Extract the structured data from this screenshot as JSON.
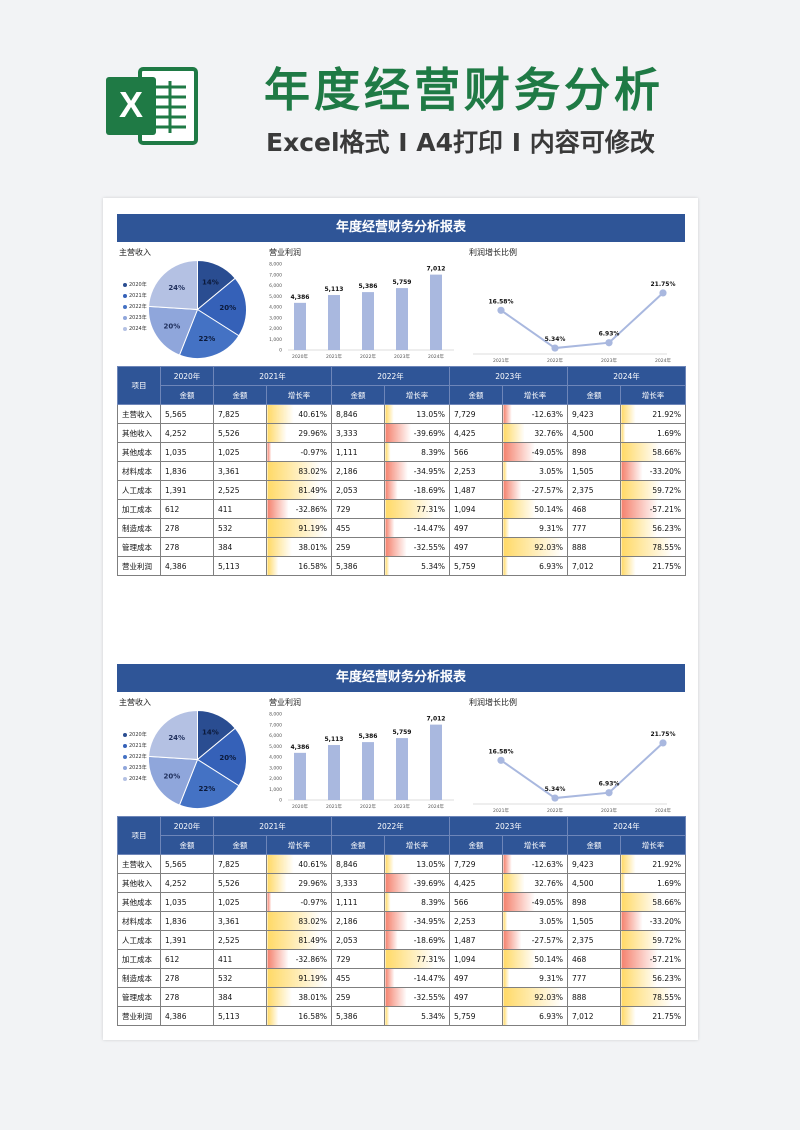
{
  "promo": {
    "logo_letter": "X",
    "title": "年度经营财务分析",
    "subtitle": "Excel格式 I A4打印 I 内容可修改"
  },
  "report": {
    "title": "年度经营财务分析报表",
    "pie_title": "主营收入",
    "bar_title": "营业利润",
    "line_title": "利润增长比例"
  },
  "colors": {
    "header_bg": "#2f5597",
    "brand_green": "#1f7a45",
    "bar": "#a9b8df",
    "line": "#a9b8df",
    "positive_rate": "#ffd966",
    "negative_rate": "#f4826e"
  },
  "chart_data": [
    {
      "type": "pie",
      "title": "主营收入",
      "legend_position": "left",
      "categories": [
        "2020年",
        "2021年",
        "2022年",
        "2023年",
        "2024年"
      ],
      "values": [
        14,
        20,
        22,
        20,
        24
      ],
      "labels": [
        "14%",
        "20%",
        "22%",
        "20%",
        "24%"
      ],
      "colors": [
        "#2a4d91",
        "#3561b8",
        "#4472c4",
        "#8fa6db",
        "#b4c1e3"
      ]
    },
    {
      "type": "bar",
      "title": "营业利润",
      "categories": [
        "2020年",
        "2021年",
        "2022年",
        "2023年",
        "2024年"
      ],
      "values": [
        4386,
        5113,
        5386,
        5759,
        7012
      ],
      "labels": [
        "4,386",
        "5,113",
        "5,386",
        "5,759",
        "7,012"
      ],
      "ylim": [
        0,
        8000
      ],
      "yticks": [
        "0",
        "1,000",
        "2,000",
        "3,000",
        "4,000",
        "5,000",
        "6,000",
        "7,000",
        "8,000"
      ],
      "grid": false
    },
    {
      "type": "line",
      "title": "利润增长比例",
      "categories": [
        "2021年",
        "2022年",
        "2023年",
        "2024年"
      ],
      "values": [
        16.58,
        5.34,
        6.93,
        21.75
      ],
      "labels": [
        "16.58%",
        "5.34%",
        "6.93%",
        "21.75%"
      ],
      "grid": false
    },
    {
      "type": "table",
      "header_col": "项目",
      "years": [
        "2020年",
        "2021年",
        "2022年",
        "2023年",
        "2024年"
      ],
      "sub_amount": "金额",
      "sub_rate": "增长率",
      "rows": [
        {
          "name": "主营收入",
          "cells": [
            "5,565",
            "7,825",
            "40.61%",
            "8,846",
            "13.05%",
            "7,729",
            "-12.63%",
            "9,423",
            "21.92%"
          ],
          "rates": [
            40.61,
            13.05,
            -12.63,
            21.92
          ]
        },
        {
          "name": "其他收入",
          "cells": [
            "4,252",
            "5,526",
            "29.96%",
            "3,333",
            "-39.69%",
            "4,425",
            "32.76%",
            "4,500",
            "1.69%"
          ],
          "rates": [
            29.96,
            -39.69,
            32.76,
            1.69
          ]
        },
        {
          "name": "其他成本",
          "cells": [
            "1,035",
            "1,025",
            "-0.97%",
            "1,111",
            "8.39%",
            "566",
            "-49.05%",
            "898",
            "58.66%"
          ],
          "rates": [
            -0.97,
            8.39,
            -49.05,
            58.66
          ]
        },
        {
          "name": "材料成本",
          "cells": [
            "1,836",
            "3,361",
            "83.02%",
            "2,186",
            "-34.95%",
            "2,253",
            "3.05%",
            "1,505",
            "-33.20%"
          ],
          "rates": [
            83.02,
            -34.95,
            3.05,
            -33.2
          ]
        },
        {
          "name": "人工成本",
          "cells": [
            "1,391",
            "2,525",
            "81.49%",
            "2,053",
            "-18.69%",
            "1,487",
            "-27.57%",
            "2,375",
            "59.72%"
          ],
          "rates": [
            81.49,
            -18.69,
            -27.57,
            59.72
          ]
        },
        {
          "name": "加工成本",
          "cells": [
            "612",
            "411",
            "-32.86%",
            "729",
            "77.31%",
            "1,094",
            "50.14%",
            "468",
            "-57.21%"
          ],
          "rates": [
            -32.86,
            77.31,
            50.14,
            -57.21
          ]
        },
        {
          "name": "制造成本",
          "cells": [
            "278",
            "532",
            "91.19%",
            "455",
            "-14.47%",
            "497",
            "9.31%",
            "777",
            "56.23%"
          ],
          "rates": [
            91.19,
            -14.47,
            9.31,
            56.23
          ]
        },
        {
          "name": "管理成本",
          "cells": [
            "278",
            "384",
            "38.01%",
            "259",
            "-32.55%",
            "497",
            "92.03%",
            "888",
            "78.55%"
          ],
          "rates": [
            38.01,
            -32.55,
            92.03,
            78.55
          ]
        },
        {
          "name": "营业利润",
          "cells": [
            "4,386",
            "5,113",
            "16.58%",
            "5,386",
            "5.34%",
            "5,759",
            "6.93%",
            "7,012",
            "21.75%"
          ],
          "rates": [
            16.58,
            5.34,
            6.93,
            21.75
          ]
        }
      ]
    }
  ]
}
